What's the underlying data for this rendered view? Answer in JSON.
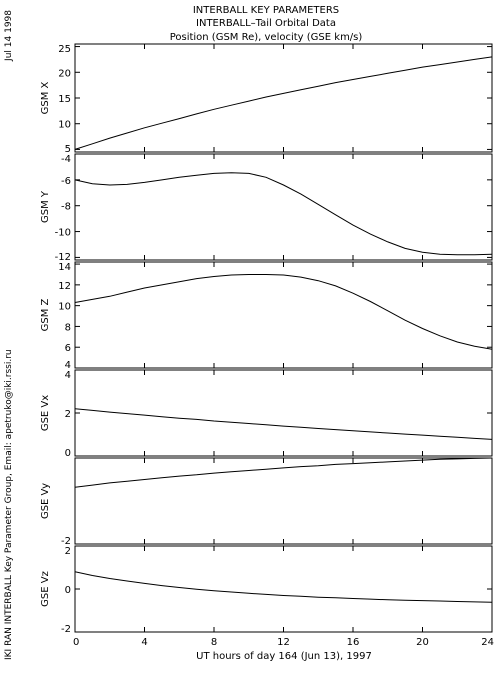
{
  "side_text": {
    "date": "Jul 14 1998",
    "credit": "IKI RAN INTERBALL Key Parameter Group, Email: apetruko@iki.rssi.ru"
  },
  "header": {
    "line1": "INTERBALL KEY PARAMETERS",
    "line2": "INTERBALL–Tail Orbital Data",
    "line3": "Position (GSM Re), velocity (GSE km/s)"
  },
  "chart_data": {
    "type": "line",
    "xlabel": "UT hours of day 164 (Jun 13), 1997",
    "xlim": [
      0,
      24
    ],
    "xticks": [
      0,
      4,
      8,
      12,
      16,
      20,
      24
    ],
    "x": [
      0,
      1,
      2,
      3,
      4,
      5,
      6,
      7,
      8,
      9,
      10,
      11,
      12,
      13,
      14,
      15,
      16,
      17,
      18,
      19,
      20,
      21,
      22,
      23,
      24
    ],
    "panels": [
      {
        "name": "gsm-x",
        "ylabel": "GSM X",
        "ylim": [
          4.5,
          25.5
        ],
        "yticks": [
          5,
          10,
          15,
          20,
          25
        ],
        "values": [
          5.0,
          6.1,
          7.2,
          8.2,
          9.2,
          10.1,
          11.0,
          11.9,
          12.8,
          13.6,
          14.4,
          15.2,
          15.9,
          16.6,
          17.3,
          18.0,
          18.6,
          19.2,
          19.8,
          20.4,
          21.0,
          21.5,
          22.0,
          22.5,
          23.0
        ]
      },
      {
        "name": "gsm-y",
        "ylabel": "GSM Y",
        "ylim": [
          -12.2,
          -4.0
        ],
        "yticks": [
          -4,
          -6,
          -8,
          -10,
          -12
        ],
        "values": [
          -6.0,
          -6.3,
          -6.4,
          -6.35,
          -6.2,
          -6.0,
          -5.8,
          -5.65,
          -5.5,
          -5.45,
          -5.5,
          -5.8,
          -6.4,
          -7.1,
          -7.9,
          -8.7,
          -9.5,
          -10.2,
          -10.8,
          -11.3,
          -11.6,
          -11.75,
          -11.8,
          -11.8,
          -11.75
        ]
      },
      {
        "name": "gsm-z",
        "ylabel": "GSM Z",
        "ylim": [
          4.0,
          14.2
        ],
        "yticks": [
          4,
          6,
          8,
          10,
          12,
          14
        ],
        "values": [
          10.3,
          10.6,
          10.9,
          11.3,
          11.7,
          12.0,
          12.3,
          12.6,
          12.8,
          12.95,
          13.0,
          13.0,
          12.95,
          12.75,
          12.4,
          11.9,
          11.2,
          10.4,
          9.5,
          8.6,
          7.8,
          7.1,
          6.5,
          6.1,
          5.8
        ]
      },
      {
        "name": "gse-vx",
        "ylabel": "GSE Vx",
        "ylim": [
          0,
          4
        ],
        "yticks": [
          0,
          2,
          4
        ],
        "values": [
          2.2,
          2.12,
          2.04,
          1.97,
          1.9,
          1.83,
          1.76,
          1.7,
          1.63,
          1.57,
          1.51,
          1.45,
          1.39,
          1.34,
          1.28,
          1.23,
          1.17,
          1.12,
          1.07,
          1.02,
          0.97,
          0.92,
          0.87,
          0.82,
          0.77
        ]
      },
      {
        "name": "gse-vy",
        "ylabel": "GSE Vy",
        "ylim": [
          -2,
          0
        ],
        "yticks": [
          -2
        ],
        "values": [
          -0.68,
          -0.63,
          -0.58,
          -0.54,
          -0.5,
          -0.46,
          -0.42,
          -0.39,
          -0.35,
          -0.32,
          -0.29,
          -0.26,
          -0.23,
          -0.2,
          -0.18,
          -0.15,
          -0.13,
          -0.11,
          -0.09,
          -0.07,
          -0.05,
          -0.03,
          -0.02,
          -0.01,
          0.0
        ]
      },
      {
        "name": "gse-vz",
        "ylabel": "GSE Vz",
        "ylim": [
          -2,
          2
        ],
        "yticks": [
          -2,
          0,
          2
        ],
        "values": [
          0.8,
          0.63,
          0.49,
          0.37,
          0.26,
          0.16,
          0.07,
          -0.01,
          -0.08,
          -0.14,
          -0.2,
          -0.25,
          -0.3,
          -0.34,
          -0.38,
          -0.41,
          -0.44,
          -0.47,
          -0.5,
          -0.52,
          -0.54,
          -0.56,
          -0.58,
          -0.6,
          -0.62
        ]
      }
    ]
  }
}
